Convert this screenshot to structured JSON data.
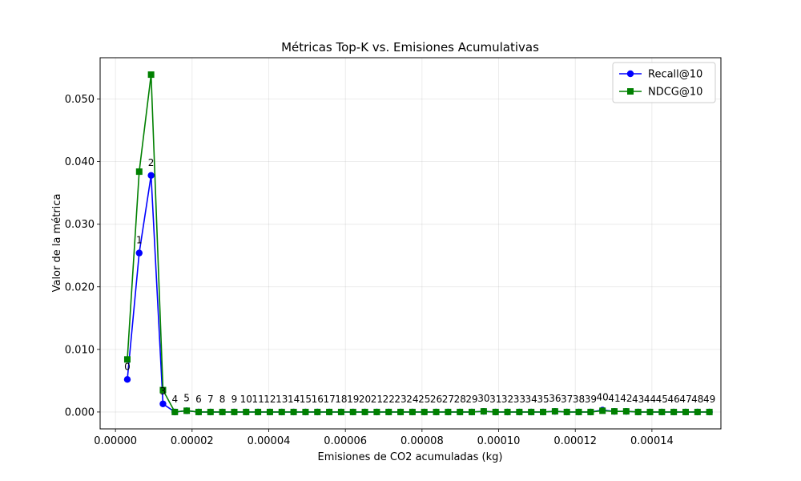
{
  "chart_data": {
    "type": "line",
    "title": "Métricas Top-K vs. Emisiones Acumulativas",
    "xlabel": "Emisiones de CO2 acumuladas (kg)",
    "ylabel": "Valor de la métrica",
    "xlim": [
      -4e-06,
      0.000158
    ],
    "ylim": [
      -0.0027,
      0.0566
    ],
    "xticks": [
      0,
      2e-05,
      4e-05,
      6e-05,
      8e-05,
      0.0001,
      0.00012,
      0.00014
    ],
    "xtick_labels": [
      "0.00000",
      "0.00002",
      "0.00004",
      "0.00006",
      "0.00008",
      "0.00010",
      "0.00012",
      "0.00014"
    ],
    "yticks": [
      0,
      0.01,
      0.02,
      0.03,
      0.04,
      0.05
    ],
    "ytick_labels": [
      "0.000",
      "0.010",
      "0.020",
      "0.030",
      "0.040",
      "0.050"
    ],
    "grid": true,
    "legend_position": "top-right",
    "x": [
      3.1e-06,
      6.2e-06,
      9.3e-06,
      1.24e-05,
      1.55e-05,
      1.86e-05,
      2.17e-05,
      2.48e-05,
      2.79e-05,
      3.1e-05,
      3.41e-05,
      3.72e-05,
      4.03e-05,
      4.34e-05,
      4.65e-05,
      4.96e-05,
      5.27e-05,
      5.58e-05,
      5.89e-05,
      6.2e-05,
      6.51e-05,
      6.82e-05,
      7.13e-05,
      7.44e-05,
      7.75e-05,
      8.06e-05,
      8.37e-05,
      8.68e-05,
      8.99e-05,
      9.3e-05,
      9.61e-05,
      9.92e-05,
      0.0001023,
      0.0001054,
      0.0001085,
      0.0001116,
      0.0001147,
      0.0001178,
      0.0001209,
      0.000124,
      0.0001271,
      0.0001302,
      0.0001333,
      0.0001364,
      0.0001395,
      0.0001426,
      0.0001457,
      0.0001488,
      0.0001519,
      0.000155
    ],
    "point_labels": [
      "0",
      "1",
      "2",
      "3",
      "4",
      "5",
      "6",
      "7",
      "8",
      "9",
      "10",
      "11",
      "12",
      "13",
      "14",
      "15",
      "16",
      "17",
      "18",
      "19",
      "20",
      "21",
      "22",
      "23",
      "24",
      "25",
      "26",
      "27",
      "28",
      "29",
      "30",
      "31",
      "32",
      "33",
      "34",
      "35",
      "36",
      "37",
      "38",
      "39",
      "40",
      "41",
      "42",
      "43",
      "44",
      "45",
      "46",
      "47",
      "48",
      "49"
    ],
    "series": [
      {
        "name": "Recall@10",
        "color": "#0000ff",
        "marker": "circle",
        "values": [
          0.0052,
          0.0254,
          0.0378,
          0.0013,
          0,
          0.0002,
          0,
          0,
          0,
          0,
          0,
          0,
          0,
          0,
          0,
          0,
          0,
          0,
          0,
          0,
          0,
          0,
          0,
          0,
          0,
          0,
          0,
          0,
          0,
          0,
          0.0001,
          0,
          0,
          0,
          0,
          0,
          0.0001,
          0,
          0,
          0,
          0.0003,
          0.0001,
          0.0001,
          0,
          0,
          0,
          0,
          0,
          0,
          0
        ]
      },
      {
        "name": "NDCG@10",
        "color": "#008000",
        "marker": "square",
        "values": [
          0.0084,
          0.0384,
          0.0539,
          0.0035,
          0,
          0.0002,
          0,
          0,
          0,
          0,
          0,
          0,
          0,
          0,
          0,
          0,
          0,
          0,
          0,
          0,
          0,
          0,
          0,
          0,
          0,
          0,
          0,
          0,
          0,
          0,
          0.0001,
          0,
          0,
          0,
          0,
          0,
          0.0001,
          0,
          0,
          0,
          0.0002,
          0.0001,
          0.0001,
          0,
          0,
          0,
          0,
          0,
          0,
          0
        ]
      }
    ]
  }
}
